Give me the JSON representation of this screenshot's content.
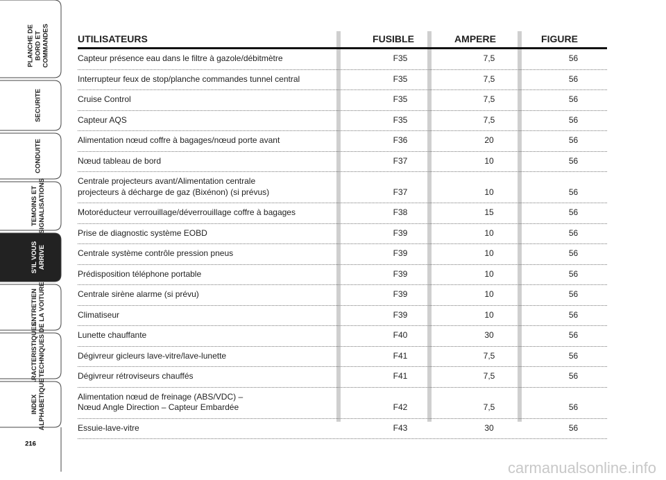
{
  "sidebar": {
    "tabs": [
      {
        "lines": [
          "PLANCHE DE",
          "BORD ET",
          "COMMANDES"
        ]
      },
      {
        "lines": [
          "SECURITE"
        ]
      },
      {
        "lines": [
          "CONDUITE"
        ]
      },
      {
        "lines": [
          "TEMOINS ET",
          "SIGNALISATIONS"
        ]
      },
      {
        "lines": [
          "S'IL VOUS",
          "ARRIVE"
        ]
      },
      {
        "lines": [
          "ENTRETIEN",
          "DE LA VOITURE"
        ]
      },
      {
        "lines": [
          "CARACTERISTIQUES",
          "TECHNIQUES"
        ]
      },
      {
        "lines": [
          "INDEX",
          "ALPHABETIQUE"
        ]
      }
    ],
    "page_number": "216"
  },
  "table": {
    "header": [
      "UTILISATEURS",
      "FUSIBLE",
      "AMPERE",
      "FIGURE"
    ],
    "rows": [
      [
        "Capteur présence eau dans le filtre à gazole/débitmètre",
        "F35",
        "7,5",
        "56"
      ],
      [
        "Interrupteur feux de stop/planche commandes tunnel central",
        "F35",
        "7,5",
        "56"
      ],
      [
        "Cruise Control",
        "F35",
        "7,5",
        "56"
      ],
      [
        "Capteur AQS",
        "F35",
        "7,5",
        "56"
      ],
      [
        "Alimentation nœud coffre à bagages/nœud porte avant",
        "F36",
        "20",
        "56"
      ],
      [
        "Nœud tableau de bord",
        "F37",
        "10",
        "56"
      ],
      [
        "Centrale projecteurs avant/Alimentation centrale\nprojecteurs à décharge de gaz (Bixénon) (si prévus)",
        "F37",
        "10",
        "56"
      ],
      [
        "Motoréducteur verrouillage/déverrouillage coffre à bagages",
        "F38",
        "15",
        "56"
      ],
      [
        "Prise de diagnostic système EOBD",
        "F39",
        "10",
        "56"
      ],
      [
        "Centrale système contrôle pression pneus",
        "F39",
        "10",
        "56"
      ],
      [
        "Prédisposition téléphone portable",
        "F39",
        "10",
        "56"
      ],
      [
        "Centrale sirène alarme (si prévu)",
        "F39",
        "10",
        "56"
      ],
      [
        "Climatiseur",
        "F39",
        "10",
        "56"
      ],
      [
        "Lunette chauffante",
        "F40",
        "30",
        "56"
      ],
      [
        "Dégivreur gicleurs lave-vitre/lave-lunette",
        "F41",
        "7,5",
        "56"
      ],
      [
        "Dégivreur rétroviseurs chauffés",
        "F41",
        "7,5",
        "56"
      ],
      [
        "Alimentation nœud de freinage (ABS/VDC) –\nNœud Angle Direction – Capteur Embardée",
        "F42",
        "7,5",
        "56"
      ],
      [
        "Essuie-lave-vitre",
        "F43",
        "30",
        "56"
      ]
    ]
  },
  "watermark": "carmanualsonline.info"
}
